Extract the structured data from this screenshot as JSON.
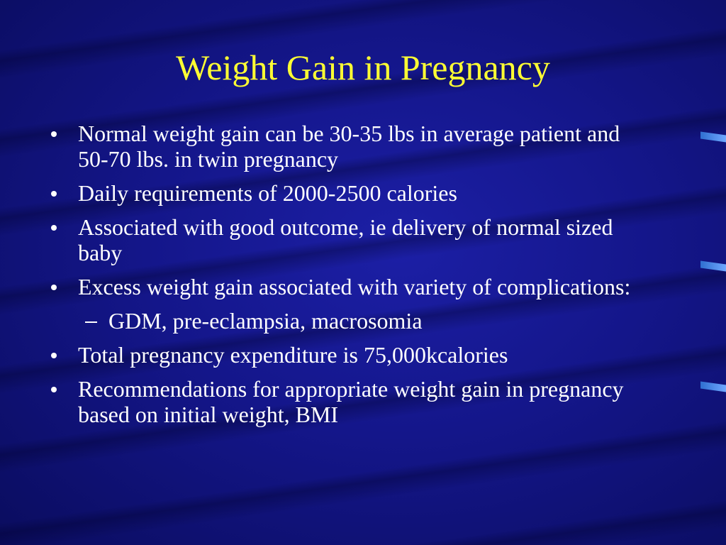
{
  "slide": {
    "title": "Weight Gain in Pregnancy",
    "bullets": [
      "Normal weight gain can be 30-35 lbs in average patient and 50-70 lbs. in twin pregnancy",
      "Daily requirements of 2000-2500 calories",
      "Associated with good outcome, ie delivery of normal sized baby",
      "Excess weight gain associated with variety of complications:",
      "Total pregnancy expenditure is 75,000kcalories",
      "Recommendations for appropriate weight gain in pregnancy based on initial weight, BMI"
    ],
    "sub_bullet": "GDM, pre-eclampsia, macrosomia"
  }
}
